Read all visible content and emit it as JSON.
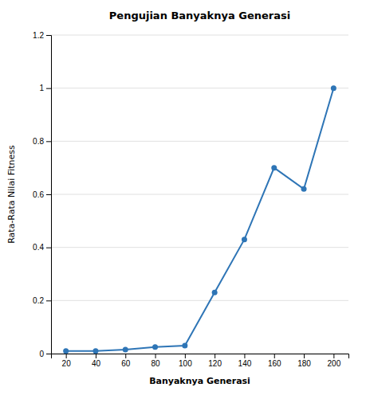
{
  "chart_data": {
    "type": "line",
    "title": "Pengujian Banyaknya Generasi",
    "xlabel": "Banyaknya Generasi",
    "ylabel": "Rata-Rata Nilai Fitness",
    "x": [
      20,
      40,
      60,
      80,
      100,
      120,
      140,
      160,
      180,
      200
    ],
    "values": [
      0.01,
      0.01,
      0.015,
      0.025,
      0.03,
      0.23,
      0.43,
      0.7,
      0.62,
      1.0
    ],
    "color": "#2E75B6",
    "marker": "circle",
    "xlim": [
      10,
      210
    ],
    "xticks": [
      20,
      40,
      60,
      80,
      100,
      120,
      140,
      160,
      180,
      200
    ],
    "ylim": [
      0,
      1.2
    ],
    "yticks": [
      0,
      0.2,
      0.4,
      0.6,
      0.8,
      1.0,
      1.2
    ],
    "grid": true
  }
}
